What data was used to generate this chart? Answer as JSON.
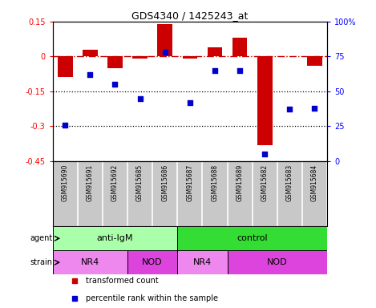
{
  "title": "GDS4340 / 1425243_at",
  "samples": [
    "GSM915690",
    "GSM915691",
    "GSM915692",
    "GSM915685",
    "GSM915686",
    "GSM915687",
    "GSM915688",
    "GSM915689",
    "GSM915682",
    "GSM915683",
    "GSM915684"
  ],
  "transformed_count": [
    -0.09,
    0.03,
    -0.05,
    -0.01,
    0.14,
    -0.01,
    0.04,
    0.08,
    -0.38,
    0.0,
    -0.04
  ],
  "percentile_rank": [
    26,
    62,
    55,
    45,
    78,
    42,
    65,
    65,
    5,
    37,
    38
  ],
  "ylim_left": [
    -0.45,
    0.15
  ],
  "ylim_right": [
    0,
    100
  ],
  "yticks_left": [
    0.15,
    0.0,
    -0.15,
    -0.3,
    -0.45
  ],
  "yticks_right_vals": [
    100,
    75,
    50,
    25,
    0
  ],
  "yticks_right_labels": [
    "100%",
    "75",
    "50",
    "25",
    "0"
  ],
  "hline_y": 0.0,
  "dotted_lines": [
    -0.15,
    -0.3
  ],
  "bar_color": "#CC0000",
  "dot_color": "#0000CC",
  "agent_groups": [
    {
      "label": "anti-IgM",
      "start": 0,
      "end": 5,
      "color": "#AAFFAA"
    },
    {
      "label": "control",
      "start": 5,
      "end": 11,
      "color": "#33DD33"
    }
  ],
  "strain_groups": [
    {
      "label": "NR4",
      "start": 0,
      "end": 3,
      "color": "#EE88EE"
    },
    {
      "label": "NOD",
      "start": 3,
      "end": 5,
      "color": "#DD44DD"
    },
    {
      "label": "NR4",
      "start": 5,
      "end": 7,
      "color": "#EE88EE"
    },
    {
      "label": "NOD",
      "start": 7,
      "end": 11,
      "color": "#DD44DD"
    }
  ],
  "legend_items": [
    {
      "label": "transformed count",
      "color": "#CC0000"
    },
    {
      "label": "percentile rank within the sample",
      "color": "#0000CC"
    }
  ],
  "row_labels": [
    "agent",
    "strain"
  ],
  "background_color": "#FFFFFF",
  "tick_label_bg": "#C8C8C8",
  "ytick_left_labels": [
    "0.15",
    "0",
    "-0.15",
    "-0.3",
    "-0.45"
  ]
}
